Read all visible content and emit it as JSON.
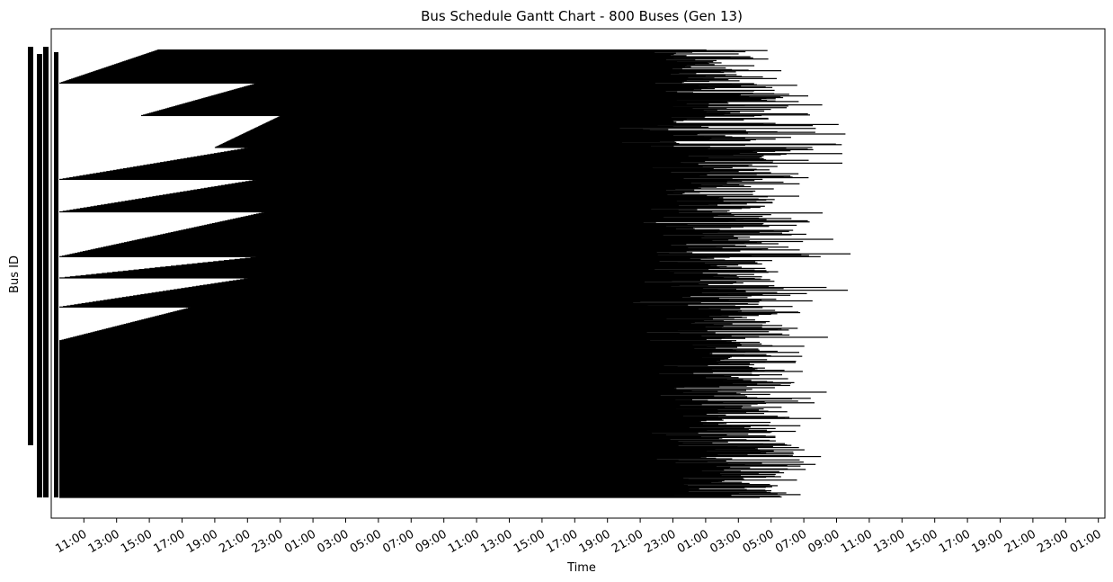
{
  "chart_data": {
    "type": "gantt",
    "title": "Bus Schedule Gantt Chart - 800 Buses (Gen 13)",
    "xlabel": "Time",
    "ylabel": "Bus ID",
    "x_ticks": [
      "11:00",
      "13:00",
      "15:00",
      "17:00",
      "19:00",
      "21:00",
      "23:00",
      "01:00",
      "03:00",
      "05:00",
      "07:00",
      "09:00",
      "11:00",
      "13:00",
      "15:00",
      "17:00",
      "19:00",
      "21:00",
      "23:00",
      "01:00",
      "03:00",
      "05:00",
      "07:00",
      "09:00",
      "11:00",
      "13:00",
      "15:00",
      "17:00",
      "19:00",
      "21:00",
      "23:00",
      "01:00"
    ],
    "x_range_hours": [
      9.5,
      73.0
    ],
    "bus_count": 800,
    "bar_color": "#000000",
    "grid": false,
    "legend": "none",
    "blocks": [
      {
        "rows": [
          0,
          60
        ],
        "start_top": 15.5,
        "start_bottom": 9.5,
        "end_first": 46.5,
        "end_last": 51.0
      },
      {
        "rows": [
          60,
          118
        ],
        "start_top": 21.5,
        "start_bottom": 14.5,
        "end_first": 44.0,
        "end_last": 54.5
      },
      {
        "rows": [
          118,
          175
        ],
        "start_top": 23.0,
        "start_bottom": 19.0,
        "end_first": 42.5,
        "end_last": 55.0
      },
      {
        "rows": [
          175,
          232
        ],
        "start_top": 21.0,
        "start_bottom": 9.5,
        "end_first": 44.0,
        "end_last": 55.5
      },
      {
        "rows": [
          232,
          290
        ],
        "start_top": 21.5,
        "start_bottom": 9.5,
        "end_first": 46.0,
        "end_last": 53.0
      },
      {
        "rows": [
          290,
          370
        ],
        "start_top": 22.0,
        "start_bottom": 9.5,
        "end_first": 44.5,
        "end_last": 55.0
      },
      {
        "rows": [
          370,
          408
        ],
        "start_top": 21.5,
        "start_bottom": 9.5,
        "end_first": 45.5,
        "end_last": 54.0
      },
      {
        "rows": [
          408,
          460
        ],
        "start_top": 21.0,
        "start_bottom": 9.5,
        "end_first": 43.0,
        "end_last": 55.0
      },
      {
        "rows": [
          460,
          520
        ],
        "start_top": 17.5,
        "start_bottom": 9.5,
        "end_first": 44.5,
        "end_last": 54.5
      },
      {
        "rows": [
          520,
          800
        ],
        "start_top": 9.5,
        "start_bottom": 9.5,
        "end_first": 46.0,
        "end_last": 53.5
      }
    ]
  }
}
